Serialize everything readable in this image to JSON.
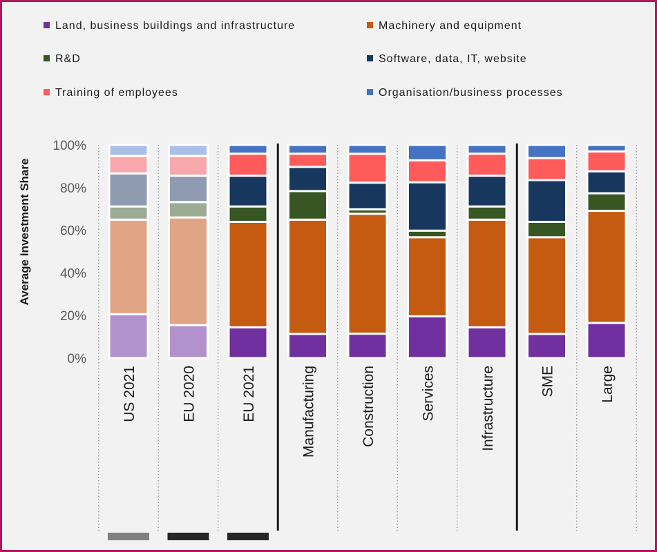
{
  "chart_data": {
    "type": "bar",
    "stacked": true,
    "title": "",
    "xlabel": "",
    "ylabel": "Average Investment Share",
    "ylim": [
      0,
      100
    ],
    "yticks": [
      "0%",
      "20%",
      "40%",
      "60%",
      "80%",
      "100%"
    ],
    "categories": [
      "US 2021",
      "EU 2020",
      "EU 2021",
      "Manufacturing",
      "Construction",
      "Services",
      "Infrastructure",
      "SME",
      "Large"
    ],
    "faded_categories": [
      "US 2021",
      "EU 2020"
    ],
    "series": [
      {
        "name": "Land, business buildings and infrastructure",
        "color": "#7030a0",
        "faded_color": "#b391cc",
        "values": [
          20,
          15,
          14,
          11,
          11,
          19,
          14,
          11,
          16
        ]
      },
      {
        "name": "Machinery and equipment",
        "color": "#c55a11",
        "faded_color": "#e0a584",
        "values": [
          43,
          49,
          48,
          52,
          54,
          36,
          49,
          44,
          51
        ]
      },
      {
        "name": "R&D",
        "color": "#375623",
        "faded_color": "#9cab93",
        "values": [
          6,
          7,
          7,
          13,
          2,
          3,
          6,
          7,
          8
        ]
      },
      {
        "name": "Software, data, IT, website",
        "color": "#17375e",
        "faded_color": "#8e9bb0",
        "values": [
          15,
          12,
          14,
          11,
          12,
          22,
          14,
          19,
          10
        ]
      },
      {
        "name": "Training of employees",
        "color": "#ff5b5b",
        "faded_color": "#f8a8ad",
        "values": [
          8,
          9,
          10,
          6,
          13,
          10,
          10,
          10,
          9
        ]
      },
      {
        "name": "Organisation/business processes",
        "color": "#4472c4",
        "faded_color": "#a8bfe6",
        "values": [
          5,
          5,
          4,
          4,
          4,
          7,
          4,
          6,
          3
        ]
      }
    ],
    "group_separators_after": [
      "EU 2021",
      "Infrastructure"
    ],
    "marker_bars": [
      {
        "category": "US 2021",
        "color": "#808080"
      },
      {
        "category": "EU 2020",
        "color": "#262626"
      },
      {
        "category": "EU 2021",
        "color": "#262626"
      }
    ],
    "legend_position": "top"
  }
}
